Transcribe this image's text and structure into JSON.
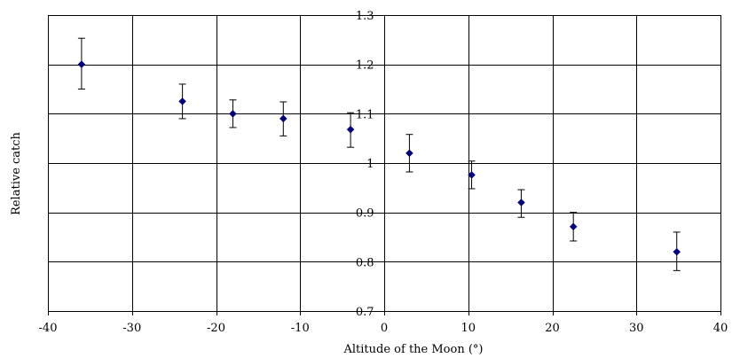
{
  "chart_data": {
    "type": "scatter",
    "xlabel": "Altitude of the Moon (°)",
    "ylabel": "Relative catch",
    "xlim": [
      -40,
      40
    ],
    "ylim": [
      0.7,
      1.3
    ],
    "xticks": [
      -40,
      -30,
      -20,
      -10,
      0,
      10,
      20,
      30,
      40
    ],
    "yticks": [
      0.7,
      0.8,
      0.9,
      1,
      1.1,
      1.2,
      1.3
    ],
    "yaxis_position": "x = 0",
    "grid": true,
    "marker": "diamond",
    "marker_color": "#00007f",
    "points": [
      {
        "x": -36,
        "y": 1.2,
        "err_low": 1.15,
        "err_high": 1.253
      },
      {
        "x": -24,
        "y": 1.125,
        "err_low": 1.09,
        "err_high": 1.16
      },
      {
        "x": -18,
        "y": 1.1,
        "err_low": 1.072,
        "err_high": 1.128
      },
      {
        "x": -12,
        "y": 1.09,
        "err_low": 1.055,
        "err_high": 1.124
      },
      {
        "x": -4,
        "y": 1.068,
        "err_low": 1.032,
        "err_high": 1.102
      },
      {
        "x": 3,
        "y": 1.02,
        "err_low": 0.982,
        "err_high": 1.058
      },
      {
        "x": 10.4,
        "y": 0.976,
        "err_low": 0.948,
        "err_high": 1.004
      },
      {
        "x": 16.3,
        "y": 0.92,
        "err_low": 0.89,
        "err_high": 0.946
      },
      {
        "x": 22.5,
        "y": 0.871,
        "err_low": 0.842,
        "err_high": 0.9
      },
      {
        "x": 34.8,
        "y": 0.82,
        "err_low": 0.782,
        "err_high": 0.86
      }
    ]
  }
}
